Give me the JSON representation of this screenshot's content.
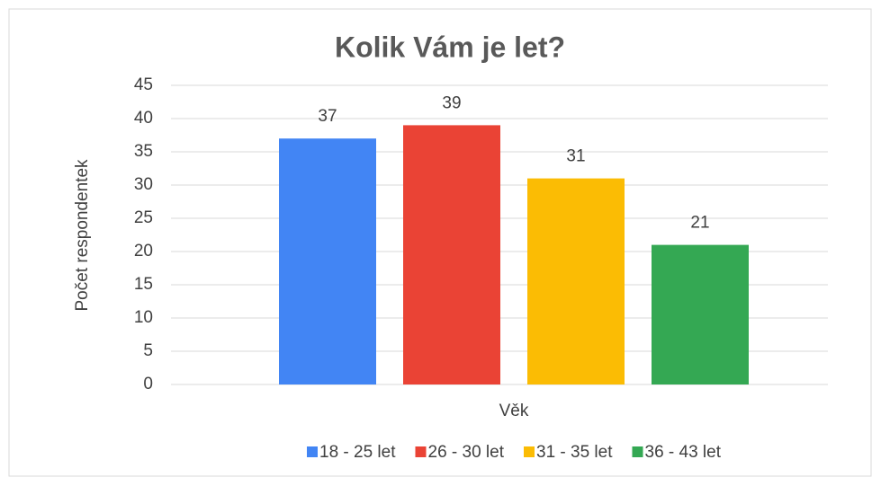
{
  "chart_data": {
    "type": "bar",
    "title": "Kolik Vám je let?",
    "categories": [
      "Věk"
    ],
    "xlabel": "Věk",
    "ylabel": "Počet respondentek",
    "series": [
      {
        "name": "18 - 25 let",
        "color": "#4285f4",
        "values": [
          37
        ]
      },
      {
        "name": "26 - 30 let",
        "color": "#ea4335",
        "values": [
          39
        ]
      },
      {
        "name": "31 - 35 let",
        "color": "#fbbc04",
        "values": [
          31
        ]
      },
      {
        "name": "36 - 43 let",
        "color": "#34a853",
        "values": [
          21
        ]
      }
    ],
    "ylim": [
      0,
      45
    ],
    "yticks": [
      0,
      5,
      10,
      15,
      20,
      25,
      30,
      35,
      40,
      45
    ],
    "grid": true,
    "legend": "bottom"
  }
}
